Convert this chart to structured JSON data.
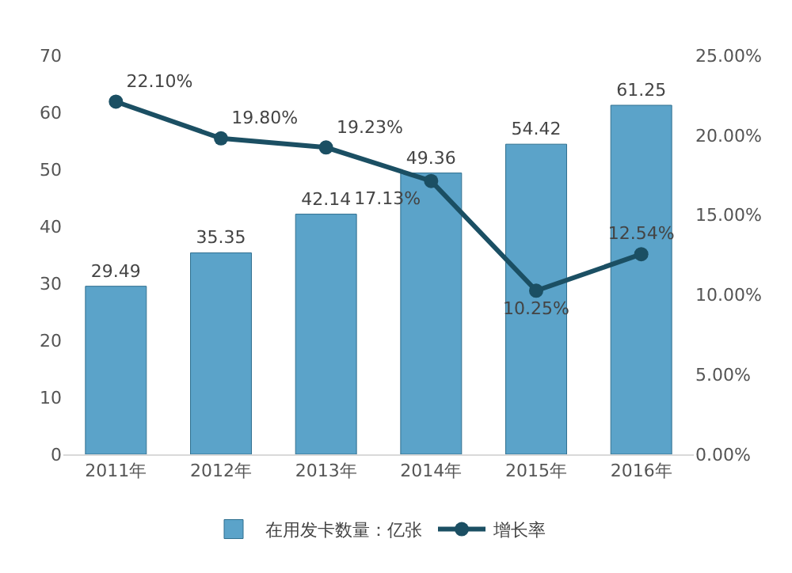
{
  "chart_data": {
    "type": "bar",
    "categories": [
      "2011年",
      "2012年",
      "2013年",
      "2014年",
      "2015年",
      "2016年"
    ],
    "series": [
      {
        "name": "在用发卡数量：亿张",
        "color": "#5ba3c9",
        "values": [
          29.49,
          35.35,
          42.14,
          49.36,
          54.42,
          61.25
        ],
        "value_labels": [
          "29.49",
          "35.35",
          "42.14",
          "49.36",
          "54.42",
          "61.25"
        ]
      },
      {
        "name": "增长率",
        "type": "line",
        "axis": "y2",
        "color": "#1b4f63",
        "values": [
          22.1,
          19.8,
          19.23,
          17.13,
          10.25,
          12.54
        ],
        "value_labels": [
          "22.10%",
          "19.80%",
          "19.23%",
          "17.13%",
          "10.25%",
          "12.54%"
        ],
        "marker": "circle"
      }
    ],
    "ylim": [
      0,
      70
    ],
    "yticks": [
      0,
      10,
      20,
      30,
      40,
      50,
      60,
      70
    ],
    "y2lim": [
      0,
      25
    ],
    "y2ticks": [
      {
        "value": 0,
        "label": "0.00%"
      },
      {
        "value": 5,
        "label": "5.00%"
      },
      {
        "value": 10,
        "label": "10.00%"
      },
      {
        "value": 15,
        "label": "15.00%"
      },
      {
        "value": 20,
        "label": "20.00%"
      },
      {
        "value": 25,
        "label": "25.00%"
      }
    ],
    "grid": false,
    "legend": "bottom"
  }
}
